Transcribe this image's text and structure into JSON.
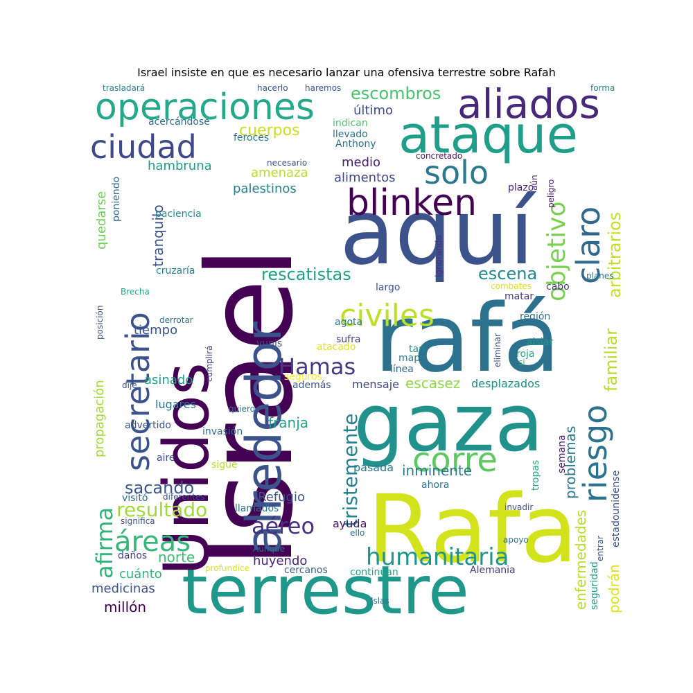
{
  "title": "Israel insiste en que es necesario lanzar una ofensiva terrestre sobre Rafah",
  "palette": [
    "#440154",
    "#3b528b",
    "#21918c",
    "#5ec962",
    "#fde725"
  ],
  "words": [
    {
      "text": "Israel",
      "color": "#440154"
    },
    {
      "text": "aquí",
      "color": "#3b528b"
    },
    {
      "text": "rafá",
      "color": "#2c728e"
    },
    {
      "text": "Rafa",
      "color": "#d2e21b"
    },
    {
      "text": "gaza",
      "color": "#21918c"
    },
    {
      "text": "terrestre",
      "color": "#1f978b"
    },
    {
      "text": "Unidos",
      "color": "#440154"
    },
    {
      "text": "alrededor",
      "color": "#3b528b"
    },
    {
      "text": "ataque",
      "color": "#1f9e89"
    },
    {
      "text": "operaciones",
      "color": "#26a98b"
    },
    {
      "text": "aliados",
      "color": "#482878"
    },
    {
      "text": "blinken",
      "color": "#440154"
    },
    {
      "text": "ciudad",
      "color": "#3e4989"
    },
    {
      "text": "solo",
      "color": "#2a788e"
    },
    {
      "text": "secretario",
      "color": "#3b528b"
    },
    {
      "text": "civiles",
      "color": "#bddf26"
    },
    {
      "text": "corre",
      "color": "#5ec962"
    },
    {
      "text": "humanitaria",
      "color": "#1f968b"
    },
    {
      "text": "áreas",
      "color": "#35b779"
    },
    {
      "text": "riesgo",
      "color": "#2c728e"
    },
    {
      "text": "claro",
      "color": "#31688e"
    },
    {
      "text": "objetivo",
      "color": "#7ad151"
    },
    {
      "text": "Hamas",
      "color": "#443a83"
    },
    {
      "text": "aéreo",
      "color": "#46327e"
    },
    {
      "text": "escena",
      "color": "#23888e"
    },
    {
      "text": "rescatistas",
      "color": "#1fa187"
    },
    {
      "text": "escombros",
      "color": "#4ac16d"
    },
    {
      "text": "tristemente",
      "color": "#26828e"
    },
    {
      "text": "afirma",
      "color": "#2fb47c"
    },
    {
      "text": "resultado",
      "color": "#a0da39"
    },
    {
      "text": "sacando",
      "color": "#3b528b"
    },
    {
      "text": "familiar",
      "color": "#b5de2b"
    },
    {
      "text": "arbitrarios",
      "color": "#c2df23"
    },
    {
      "text": "problemas",
      "color": "#2a788e"
    },
    {
      "text": "enfermedades",
      "color": "#b5de2b"
    },
    {
      "text": "podrán",
      "color": "#dde318"
    },
    {
      "text": "cuerpos",
      "color": "#c8e020"
    },
    {
      "text": "último",
      "color": "#3e4a89"
    },
    {
      "text": "tranquilo",
      "color": "#3b528b"
    },
    {
      "text": "palestinos",
      "color": "#26828e"
    },
    {
      "text": "amenaza",
      "color": "#b8de29"
    },
    {
      "text": "alimentos",
      "color": "#3e4989"
    },
    {
      "text": "medio",
      "color": "#481f70"
    },
    {
      "text": "hambruna",
      "color": "#1f9a8a"
    },
    {
      "text": "franja",
      "color": "#20a386"
    },
    {
      "text": "escasez",
      "color": "#8fd744"
    },
    {
      "text": "inminente",
      "color": "#2a788e"
    },
    {
      "text": "norte",
      "color": "#3dbc74"
    },
    {
      "text": "cuánto",
      "color": "#31b57b"
    },
    {
      "text": "medicinas",
      "color": "#3b528b"
    },
    {
      "text": "millón",
      "color": "#440154"
    },
    {
      "text": "huyendo",
      "color": "#482677"
    },
    {
      "text": "Refugio",
      "color": "#3b528b"
    },
    {
      "text": "propagación",
      "color": "#a5db36"
    },
    {
      "text": "asinado",
      "color": "#1f9f88"
    },
    {
      "text": "tiempo",
      "color": "#39568c"
    },
    {
      "text": "quedarse",
      "color": "#6ece58"
    },
    {
      "text": "lugares",
      "color": "#2c728e"
    },
    {
      "text": "mensaje",
      "color": "#414487"
    },
    {
      "text": "desplazados",
      "color": "#21918c"
    },
    {
      "text": "pasada",
      "color": "#2a788e"
    },
    {
      "text": "ayuda",
      "color": "#471365"
    },
    {
      "text": "cercanos",
      "color": "#365c8d"
    },
    {
      "text": "continúan",
      "color": "#20a486"
    },
    {
      "text": "Alemania",
      "color": "#453781"
    },
    {
      "text": "seguridad",
      "color": "#1e9c89"
    },
    {
      "text": "tropas",
      "color": "#25ac82"
    },
    {
      "text": "semana",
      "color": "#481a6c"
    },
    {
      "text": "estadounidense",
      "color": "#3b528b"
    },
    {
      "text": "región",
      "color": "#2d708e"
    },
    {
      "text": "aislar",
      "color": "#1f9a8a"
    },
    {
      "text": "roja",
      "color": "#22a785"
    },
    {
      "text": "tan",
      "color": "#23898e"
    },
    {
      "text": "mapa",
      "color": "#2a788e"
    },
    {
      "text": "línea",
      "color": "#33638d"
    },
    {
      "text": "matar",
      "color": "#453882"
    },
    {
      "text": "cabo",
      "color": "#46337f"
    },
    {
      "text": "largo",
      "color": "#3b528b"
    },
    {
      "text": "agota",
      "color": "#2a768e"
    },
    {
      "text": "sufra",
      "color": "#433e85"
    },
    {
      "text": "atacado",
      "color": "#dde318"
    },
    {
      "text": "seguros",
      "color": "#fde725"
    },
    {
      "text": "además",
      "color": "#3b528b"
    },
    {
      "text": "yunis",
      "color": "#3b528b"
    },
    {
      "text": "cruzaría",
      "color": "#26828e"
    },
    {
      "text": "paciencia",
      "color": "#23898e"
    },
    {
      "text": "poniendo",
      "color": "#31688e"
    },
    {
      "text": "acercándose",
      "color": "#2f6c8e"
    },
    {
      "text": "feroces",
      "color": "#29798e"
    },
    {
      "text": "llevado",
      "color": "#2d718e"
    },
    {
      "text": "indican",
      "color": "#4ec36b"
    },
    {
      "text": "Anthony",
      "color": "#2e6e8e"
    },
    {
      "text": "hacerlo",
      "color": "#3b528b"
    },
    {
      "text": "haremos",
      "color": "#3b528b"
    },
    {
      "text": "trasladará",
      "color": "#26818e"
    },
    {
      "text": "forma",
      "color": "#27808e"
    },
    {
      "text": "necesario",
      "color": "#3b528b"
    },
    {
      "text": "concretado",
      "color": "#481769"
    },
    {
      "text": "aún",
      "color": "#482475"
    },
    {
      "text": "peligro",
      "color": "#481b6d"
    },
    {
      "text": "plazo",
      "color": "#482173"
    },
    {
      "text": "ignorando",
      "color": "#46307e"
    },
    {
      "text": "combates",
      "color": "#dde318"
    },
    {
      "text": "planes",
      "color": "#2a788e"
    },
    {
      "text": "Brecha",
      "color": "#22a884"
    },
    {
      "text": "derrotar",
      "color": "#2c728e"
    },
    {
      "text": "posición",
      "color": "#3b528b"
    },
    {
      "text": "cumplirá",
      "color": "#3e4989"
    },
    {
      "text": "eliminar",
      "color": "#3b528b"
    },
    {
      "text": "si",
      "color": "#2fb47c"
    },
    {
      "text": "dije",
      "color": "#3b528b"
    },
    {
      "text": "quiero",
      "color": "#2c738e"
    },
    {
      "text": "advertido",
      "color": "#3b528b"
    },
    {
      "text": "invasión",
      "color": "#2d708e"
    },
    {
      "text": "aire",
      "color": "#3e4a89"
    },
    {
      "text": "sigue",
      "color": "#b8de29"
    },
    {
      "text": "ahora",
      "color": "#2c728e"
    },
    {
      "text": "visitó",
      "color": "#2f6b8e"
    },
    {
      "text": "diferentes",
      "color": "#3b528b"
    },
    {
      "text": "llamados",
      "color": "#2c728e"
    },
    {
      "text": "invadir",
      "color": "#3b528b"
    },
    {
      "text": "significa",
      "color": "#3b528b"
    },
    {
      "text": "ello",
      "color": "#2e6d8e"
    },
    {
      "text": "apoyo",
      "color": "#2e6f8e"
    },
    {
      "text": "entrar",
      "color": "#3b528b"
    },
    {
      "text": "Aunque",
      "color": "#2e6d8e"
    },
    {
      "text": "daños",
      "color": "#414287"
    },
    {
      "text": "profundice",
      "color": "#dde318"
    },
    {
      "text": "Islas",
      "color": "#2c728e"
    }
  ]
}
